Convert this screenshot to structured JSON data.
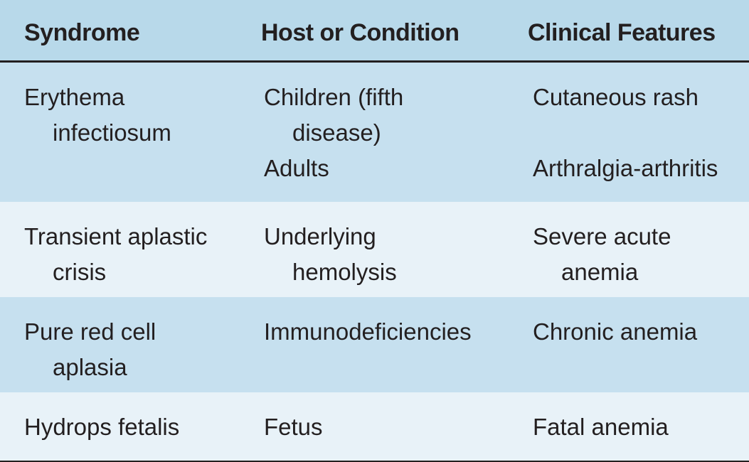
{
  "header": {
    "col1": "Syndrome",
    "col2": "Host or Condition",
    "col3": "Clinical Features"
  },
  "rows": [
    {
      "syndrome": [
        "Erythema",
        "infectiosum"
      ],
      "host": [
        "Children (fifth",
        "disease)",
        "Adults"
      ],
      "features": [
        "Cutaneous rash",
        "Arthralgia-arthritis"
      ]
    },
    {
      "syndrome": [
        "Transient aplastic",
        "crisis"
      ],
      "host": [
        "Underlying",
        "hemolysis"
      ],
      "features": [
        "Severe acute",
        "anemia"
      ]
    },
    {
      "syndrome": [
        "Pure red cell",
        "aplasia"
      ],
      "host": [
        "Immunodeficiencies"
      ],
      "features": [
        "Chronic anemia"
      ]
    },
    {
      "syndrome": [
        "Hydrops fetalis"
      ],
      "host": [
        "Fetus"
      ],
      "features": [
        "Fatal anemia"
      ]
    }
  ]
}
